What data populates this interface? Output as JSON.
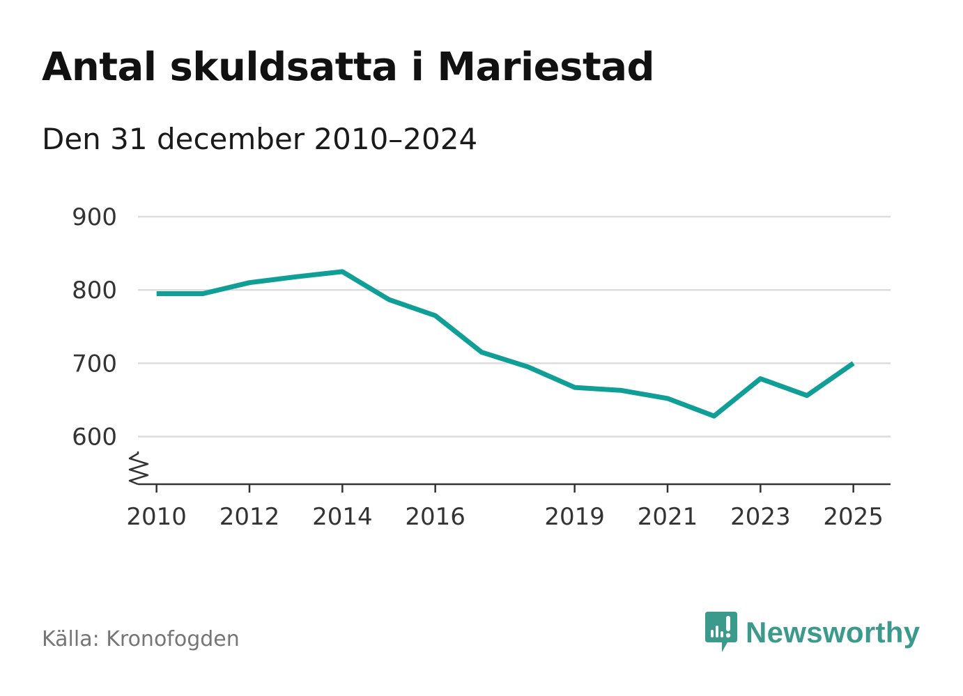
{
  "title": "Antal skuldsatta i Mariestad",
  "subtitle": "Den 31 december 2010–2024",
  "source": "Källa: Kronofogden",
  "brand": {
    "name": "Newsworthy",
    "color": "#3c9a8d",
    "icon": "newsworthy-logo-icon"
  },
  "chart_data": {
    "type": "line",
    "title": "Antal skuldsatta i Mariestad",
    "subtitle": "Den 31 december 2010–2024",
    "xlabel": "",
    "ylabel": "",
    "xlim": [
      2009.6,
      2025.8
    ],
    "ylim": [
      535,
      900
    ],
    "y_ticks": [
      600,
      700,
      800,
      900
    ],
    "y_tick_labels": [
      "600",
      "700",
      "800",
      "900"
    ],
    "x_ticks": [
      2010,
      2012,
      2014,
      2016,
      2019,
      2021,
      2023,
      2025
    ],
    "x_tick_labels": [
      "2010",
      "2012",
      "2014",
      "2016",
      "2019",
      "2021",
      "2023",
      "2025"
    ],
    "grid": true,
    "axis_break": true,
    "series": [
      {
        "name": "Antal skuldsatta",
        "color": "#0f9f96",
        "x": [
          2010,
          2011,
          2012,
          2013,
          2014,
          2015,
          2016,
          2017,
          2018,
          2019,
          2020,
          2021,
          2022,
          2023,
          2024,
          2025
        ],
        "values": [
          795,
          795,
          810,
          818,
          825,
          787,
          765,
          715,
          695,
          667,
          663,
          652,
          628,
          679,
          656,
          700
        ]
      }
    ]
  }
}
